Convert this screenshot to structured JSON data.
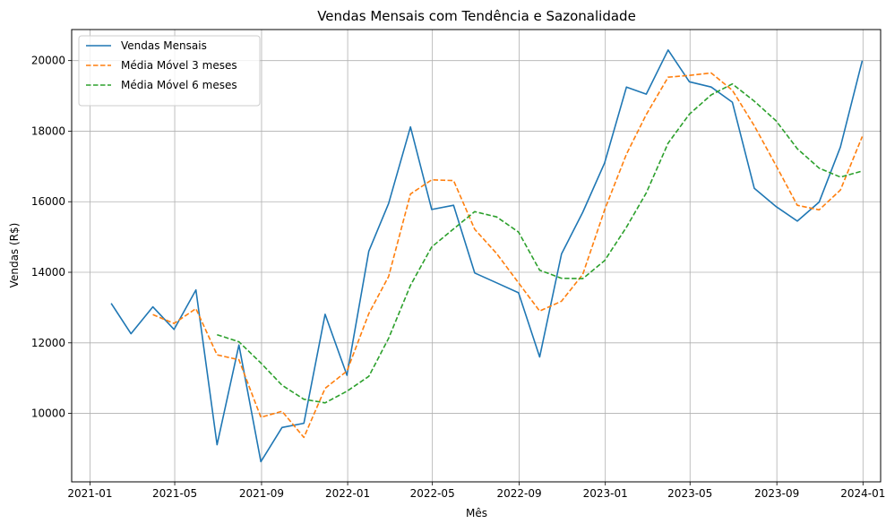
{
  "chart_data": {
    "type": "line",
    "title": "Vendas Mensais com Tendência e Sazonalidade",
    "xlabel": "Mês",
    "ylabel": "Vendas (R$)",
    "x": [
      "2021-01-31",
      "2021-02-28",
      "2021-03-31",
      "2021-04-30",
      "2021-05-31",
      "2021-06-30",
      "2021-07-31",
      "2021-08-31",
      "2021-09-30",
      "2021-10-31",
      "2021-11-30",
      "2021-12-31",
      "2022-01-31",
      "2022-02-28",
      "2022-03-31",
      "2022-04-30",
      "2022-05-31",
      "2022-06-30",
      "2022-07-31",
      "2022-08-31",
      "2022-09-30",
      "2022-10-31",
      "2022-11-30",
      "2022-12-31",
      "2023-01-31",
      "2023-02-28",
      "2023-03-31",
      "2023-04-30",
      "2023-05-31",
      "2023-06-30",
      "2023-07-31",
      "2023-08-31",
      "2023-09-30",
      "2023-10-31",
      "2023-11-30",
      "2023-12-31"
    ],
    "series": [
      {
        "name": "Vendas Mensais",
        "color": "#1f77b4",
        "dash": "solid",
        "values": [
          13120,
          12260,
          13020,
          12380,
          13500,
          9110,
          11940,
          8630,
          9600,
          9720,
          12810,
          11080,
          14600,
          15950,
          18120,
          15780,
          15900,
          13980,
          13700,
          13420,
          11600,
          14520,
          15700,
          17100,
          19250,
          19050,
          20300,
          19400,
          19250,
          18820,
          16380,
          15860,
          15450,
          15990,
          17550,
          20000
        ]
      },
      {
        "name": "Média Móvel 3 meses",
        "color": "#ff7f0e",
        "dash": "dashed",
        "values": [
          null,
          null,
          12800,
          12550,
          12970,
          11660,
          11520,
          9890,
          10060,
          9320,
          10710,
          11200,
          12830,
          13880,
          16220,
          16620,
          16600,
          15220,
          14530,
          13700,
          12900,
          13180,
          13940,
          15770,
          17350,
          18470,
          19530,
          19580,
          19650,
          19160,
          18150,
          17020,
          15900,
          15770,
          16330,
          17850
        ]
      },
      {
        "name": "Média Móvel 6 meses",
        "color": "#2ca02c",
        "dash": "dashed",
        "values": [
          null,
          null,
          null,
          null,
          null,
          12230,
          12030,
          11430,
          10800,
          10400,
          10300,
          10630,
          11050,
          12130,
          13630,
          14720,
          15230,
          15720,
          15570,
          15140,
          14060,
          13830,
          13820,
          14330,
          15280,
          16250,
          17660,
          18480,
          19030,
          19340,
          18850,
          18290,
          17500,
          16950,
          16700,
          16870
        ]
      }
    ],
    "x_ticks": [
      {
        "date": "2021-01-01",
        "label": "2021-01"
      },
      {
        "date": "2021-05-01",
        "label": "2021-05"
      },
      {
        "date": "2021-09-01",
        "label": "2021-09"
      },
      {
        "date": "2022-01-01",
        "label": "2022-01"
      },
      {
        "date": "2022-05-01",
        "label": "2022-05"
      },
      {
        "date": "2022-09-01",
        "label": "2022-09"
      },
      {
        "date": "2023-01-01",
        "label": "2023-01"
      },
      {
        "date": "2023-05-01",
        "label": "2023-05"
      },
      {
        "date": "2023-09-01",
        "label": "2023-09"
      },
      {
        "date": "2024-01-01",
        "label": "2024-01"
      }
    ],
    "y_ticks": [
      10000,
      12000,
      14000,
      16000,
      18000,
      20000
    ],
    "xlim": [
      "2020-12-06",
      "2024-01-26"
    ],
    "ylim": [
      8060,
      20880
    ],
    "grid": true,
    "legend": "upper-left"
  }
}
